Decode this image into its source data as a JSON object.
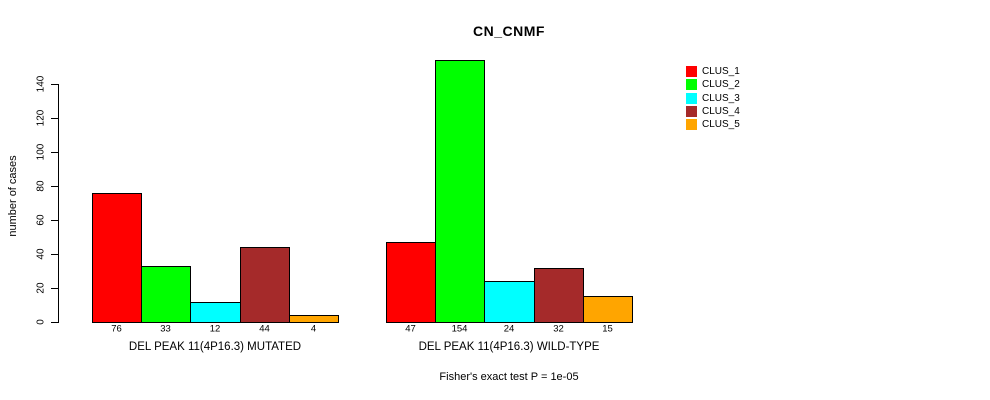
{
  "chart_data": {
    "type": "bar",
    "title": "CN_CNMF",
    "ylabel": "number of cases",
    "xlabel": "",
    "ylim": [
      0,
      157
    ],
    "yticks": [
      0,
      20,
      40,
      60,
      80,
      100,
      120,
      140
    ],
    "grid": false,
    "legend_position": "right",
    "series_names": [
      "CLUS_1",
      "CLUS_2",
      "CLUS_3",
      "CLUS_4",
      "CLUS_5"
    ],
    "series_colors": [
      "#ff0000",
      "#00ff00",
      "#00ffff",
      "#a52a2a",
      "#ffa500"
    ],
    "groups": [
      {
        "label": "DEL PEAK 11(4P16.3) MUTATED",
        "values": [
          76,
          33,
          12,
          44,
          4
        ]
      },
      {
        "label": "DEL PEAK 11(4P16.3) WILD-TYPE",
        "values": [
          47,
          154,
          24,
          32,
          15
        ]
      }
    ],
    "annotation": "Fisher's exact test P = 1e-05"
  }
}
